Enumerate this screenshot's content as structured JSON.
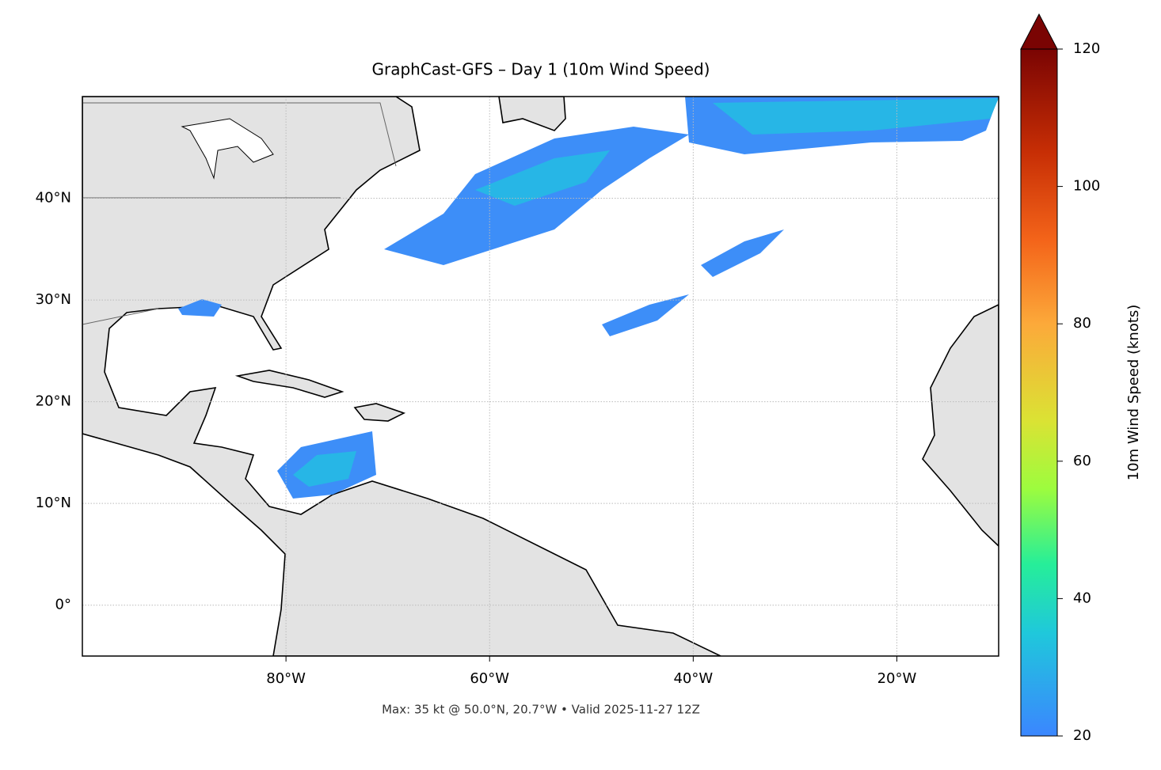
{
  "chart_data": {
    "type": "map",
    "title": "GraphCast-GFS – Day 1 (10m Wind Speed)",
    "note": "Max: 35 kt @ 50.0°N, 20.7°W • Valid 2025-11-27 12Z",
    "xlim": [
      -100,
      -10
    ],
    "ylim": [
      -5,
      50
    ],
    "xticks": [
      {
        "value": -80,
        "label": "80°W"
      },
      {
        "value": -60,
        "label": "60°W"
      },
      {
        "value": -40,
        "label": "40°W"
      },
      {
        "value": -20,
        "label": "20°W"
      }
    ],
    "yticks": [
      {
        "value": 0,
        "label": "0°"
      },
      {
        "value": 10,
        "label": "10°N"
      },
      {
        "value": 20,
        "label": "20°N"
      },
      {
        "value": 30,
        "label": "30°N"
      },
      {
        "value": 40,
        "label": "40°N"
      }
    ],
    "grid": true,
    "colorbar": {
      "label": "10m Wind Speed (knots)",
      "lim": [
        20,
        120
      ],
      "ticks": [
        20,
        40,
        60,
        80,
        100,
        120
      ]
    }
  }
}
